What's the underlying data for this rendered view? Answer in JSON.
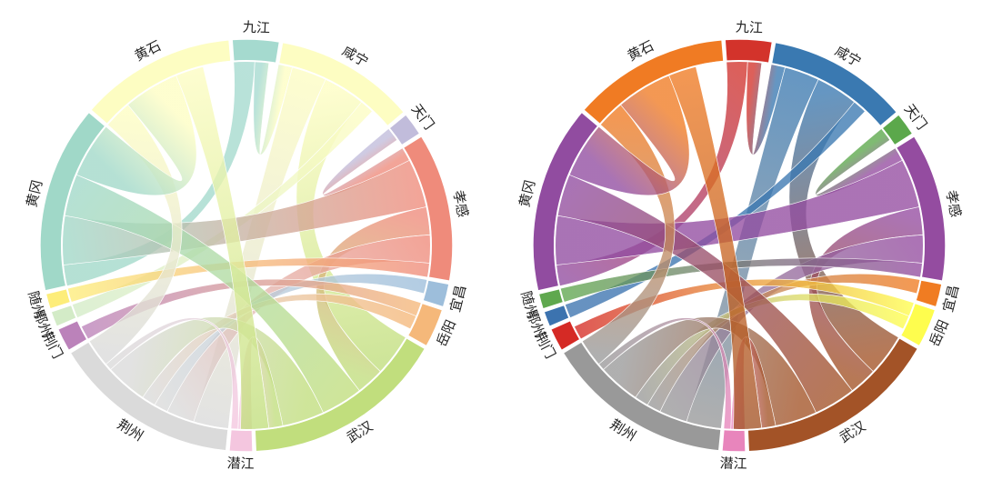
{
  "chart_data": {
    "type": "chord",
    "regions": [
      "九江",
      "咸宁",
      "天门",
      "孝感",
      "宜昌",
      "岳阳",
      "武汉",
      "潜江",
      "荆州",
      "荆门",
      "鄂州",
      "随州",
      "黄冈",
      "黄石"
    ],
    "arc_sizes": [
      6,
      18,
      3,
      19,
      3,
      5,
      26,
      3,
      24,
      3,
      2,
      2,
      24,
      20
    ],
    "charts": [
      {
        "name": "chord-pastel",
        "palette": [
          "#A5DACF",
          "#FDFDC2",
          "#C1BCDB",
          "#EF8B7B",
          "#9DBEDB",
          "#F5B87A",
          "#C1DE7D",
          "#F4C6DF",
          "#DADADA",
          "#BB82BA",
          "#D3EBC7",
          "#FDED7A",
          "#A0D8C8",
          "#FDFDC2"
        ]
      },
      {
        "name": "chord-vivid",
        "palette": [
          "#D3332B",
          "#3A79B1",
          "#5BA84B",
          "#944CA0",
          "#F07C22",
          "#FEFD4E",
          "#A35327",
          "#E885BC",
          "#999999",
          "#D52A25",
          "#3C73AF",
          "#5FA84E",
          "#914CA0",
          "#F07B23"
        ]
      }
    ],
    "flows": [
      {
        "source": "九江",
        "target": "黄冈",
        "value": 3
      },
      {
        "source": "九江",
        "target": "咸宁",
        "value": 2
      },
      {
        "source": "咸宁",
        "target": "荆州",
        "value": 5
      },
      {
        "source": "咸宁",
        "target": "武汉",
        "value": 6
      },
      {
        "source": "咸宁",
        "target": "鄂州",
        "value": 2
      },
      {
        "source": "天门",
        "target": "孝感",
        "value": 2
      },
      {
        "source": "孝感",
        "target": "黄冈",
        "value": 7
      },
      {
        "source": "孝感",
        "target": "武汉",
        "value": 4
      },
      {
        "source": "孝感",
        "target": "荆州",
        "value": 4
      },
      {
        "source": "孝感",
        "target": "随州",
        "value": 2
      },
      {
        "source": "宜昌",
        "target": "荆州",
        "value": 2
      },
      {
        "source": "岳阳",
        "target": "荆门",
        "value": 2
      },
      {
        "source": "岳阳",
        "target": "荆州",
        "value": 2
      },
      {
        "source": "武汉",
        "target": "黄冈",
        "value": 6
      },
      {
        "source": "武汉",
        "target": "荆州",
        "value": 6
      },
      {
        "source": "潜江",
        "target": "武汉",
        "value": 2
      },
      {
        "source": "潜江",
        "target": "荆州",
        "value": 1
      },
      {
        "source": "荆州",
        "target": "黄石",
        "value": 4
      },
      {
        "source": "黄冈",
        "target": "黄石",
        "value": 8
      },
      {
        "source": "黄石",
        "target": "武汉",
        "value": 4
      }
    ]
  }
}
